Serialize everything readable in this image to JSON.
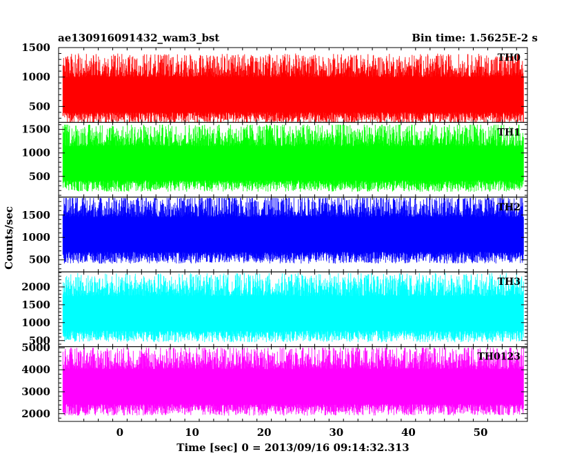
{
  "header": {
    "title": "ae130916091432_wam3_bst",
    "bin_time": "Bin time: 1.5625E-2 s"
  },
  "chart_data": {
    "type": "line",
    "xlabel": "Time [sec] 0 = 2013/09/16 09:14:32.313",
    "ylabel": "Counts/sec",
    "xlim": [
      -8.5,
      56.5
    ],
    "x_data_range": [
      -7.9,
      56.0
    ],
    "x_ticks": [
      0,
      10,
      20,
      30,
      40,
      50
    ],
    "x_tick_labels": [
      "0",
      "10",
      "20",
      "30",
      "40",
      "50"
    ],
    "legend": "top-right label inside each panel",
    "panels": [
      {
        "name": "TH0",
        "color": "#ff0000",
        "ylim": [
          230,
          1500
        ],
        "y_ticks": [
          500,
          1000,
          1500
        ],
        "y_tick_labels": [
          "500",
          "1000",
          "1500"
        ],
        "mean": 650,
        "low": 230,
        "high": 1480
      },
      {
        "name": "TH1",
        "color": "#00ff00",
        "ylim": [
          60,
          1650
        ],
        "y_ticks": [
          500,
          1000,
          1500
        ],
        "y_tick_labels": [
          "500",
          "1000",
          "1500"
        ],
        "mean": 720,
        "low": 80,
        "high": 1600
      },
      {
        "name": "TH2",
        "color": "#0000ff",
        "ylim": [
          230,
          1900
        ],
        "y_ticks": [
          500,
          1000,
          1500
        ],
        "y_tick_labels": [
          "500",
          "1000",
          "1500"
        ],
        "mean": 1000,
        "low": 250,
        "high": 1880
      },
      {
        "name": "TH3",
        "color": "#00ffff",
        "ylim": [
          330,
          2420
        ],
        "y_ticks": [
          500,
          1000,
          1500,
          2000
        ],
        "y_tick_labels": [
          "500",
          "1000",
          "1500",
          "2000"
        ],
        "mean": 1180,
        "low": 380,
        "high": 2400
      },
      {
        "name": "TH0123",
        "color": "#ff00ff",
        "ylim": [
          1650,
          5050
        ],
        "y_ticks": [
          2000,
          3000,
          4000,
          5000
        ],
        "y_tick_labels": [
          "2000",
          "3000",
          "4000",
          "5000"
        ],
        "mean": 3100,
        "low": 1700,
        "high": 5000
      }
    ]
  }
}
